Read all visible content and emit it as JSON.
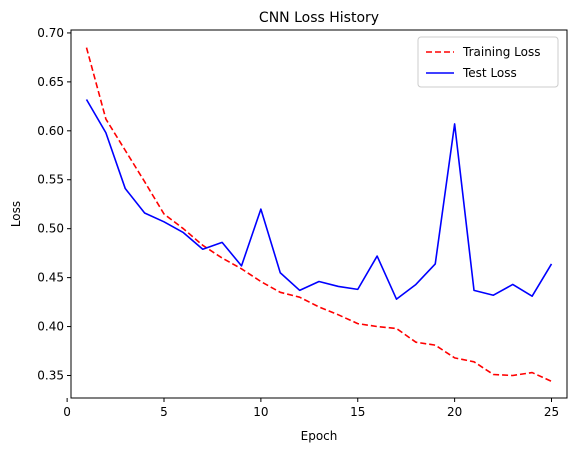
{
  "chart_data": {
    "type": "line",
    "title": "CNN Loss History",
    "xlabel": "Epoch",
    "ylabel": "Loss",
    "xlim": [
      0.2,
      25.8
    ],
    "ylim": [
      0.327,
      0.703
    ],
    "xticks": [
      0,
      5,
      10,
      15,
      20,
      25
    ],
    "yticks": [
      0.35,
      0.4,
      0.45,
      0.5,
      0.55,
      0.6,
      0.65,
      0.7
    ],
    "grid": false,
    "legend_position": "top-right",
    "x": [
      1,
      2,
      3,
      4,
      5,
      6,
      7,
      8,
      9,
      10,
      11,
      12,
      13,
      14,
      15,
      16,
      17,
      18,
      19,
      20,
      21,
      22,
      23,
      24,
      25
    ],
    "series": [
      {
        "name": "Training Loss",
        "color": "#ff0000",
        "style": "dashed",
        "values": [
          0.685,
          0.612,
          0.58,
          0.548,
          0.515,
          0.5,
          0.483,
          0.47,
          0.459,
          0.446,
          0.435,
          0.43,
          0.42,
          0.412,
          0.403,
          0.4,
          0.398,
          0.384,
          0.381,
          0.368,
          0.364,
          0.351,
          0.35,
          0.353,
          0.344
        ]
      },
      {
        "name": "Test Loss",
        "color": "#0000ff",
        "style": "solid",
        "values": [
          0.632,
          0.598,
          0.541,
          0.516,
          0.507,
          0.496,
          0.479,
          0.486,
          0.462,
          0.52,
          0.455,
          0.437,
          0.446,
          0.441,
          0.438,
          0.472,
          0.428,
          0.443,
          0.464,
          0.607,
          0.437,
          0.432,
          0.443,
          0.431,
          0.464
        ]
      }
    ]
  }
}
